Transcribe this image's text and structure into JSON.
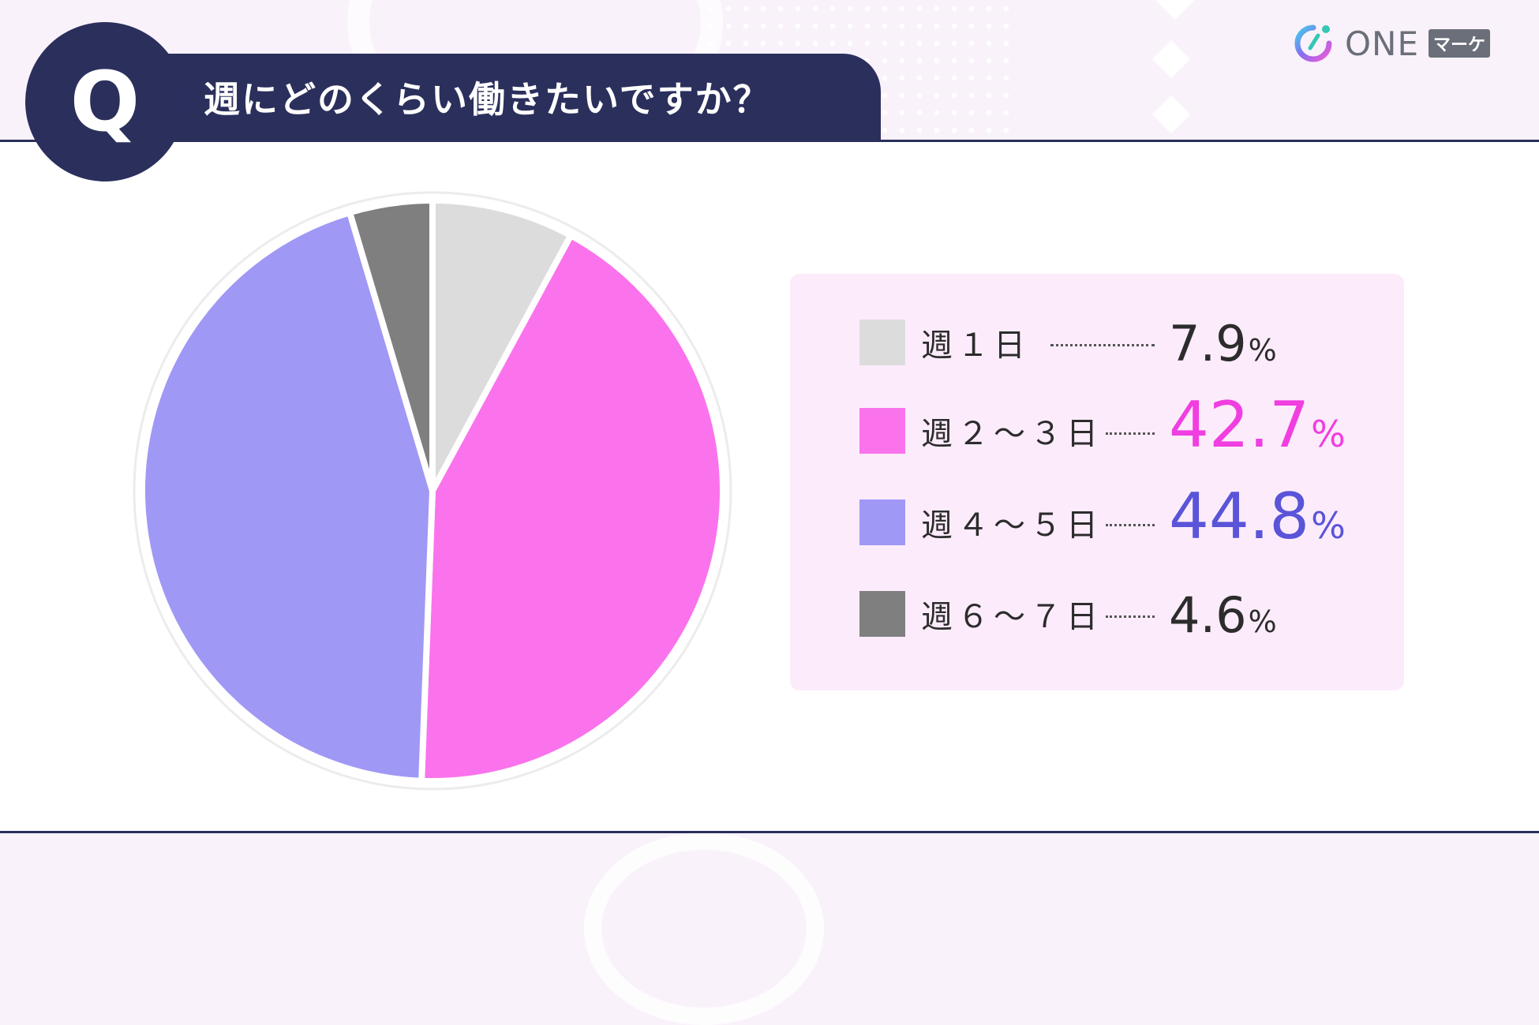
{
  "header": {
    "q_letter": "Q",
    "title": "週にどのくらい働きたいですか？"
  },
  "logo": {
    "icon": "one-marke-logo-icon",
    "text": "ONE",
    "tag": "マーケ"
  },
  "colors": {
    "navy": "#2b2f5c",
    "day1": "#dcdcdc",
    "day2_3": "#fa73ec",
    "day4_5": "#a098f5",
    "day6_7": "#7f7f7f",
    "pct_day2_3": "#f03ee0",
    "pct_day4_5": "#5a54d9",
    "pct_default": "#2c2c2c"
  },
  "chart_data": {
    "type": "pie",
    "title": "週にどのくらい働きたいですか？",
    "unit": "%",
    "categories": [
      "週１日",
      "週２～３日",
      "週４～５日",
      "週６～７日"
    ],
    "values": [
      7.9,
      42.7,
      44.8,
      4.6
    ],
    "value_labels": [
      "7.9",
      "42.7",
      "44.8",
      "4.6"
    ],
    "colors": [
      "#dcdcdc",
      "#fa73ec",
      "#a098f5",
      "#7f7f7f"
    ],
    "start_angle": "12 o'clock",
    "direction": "clockwise",
    "legend_placement": "right"
  }
}
